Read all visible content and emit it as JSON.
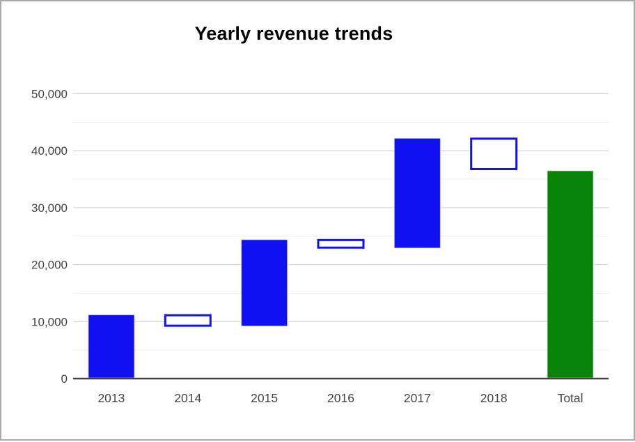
{
  "window": {
    "background": "#ffffff",
    "border_color": "#a9a9af"
  },
  "chart_data": {
    "type": "bar",
    "subtype": "waterfall",
    "title": "Yearly revenue trends",
    "xlabel": "",
    "ylabel": "",
    "legend": "none",
    "grid": true,
    "categories": [
      "2013",
      "2014",
      "2015",
      "2016",
      "2017",
      "2018",
      "Total"
    ],
    "bars": [
      {
        "label": "2013",
        "start": 0,
        "end": 11300,
        "change": 11300,
        "style": "filled-blue",
        "meaning": "increase"
      },
      {
        "label": "2014",
        "start": 11300,
        "end": 9100,
        "change": -2200,
        "style": "hollow-blue",
        "meaning": "decrease"
      },
      {
        "label": "2015",
        "start": 9100,
        "end": 24500,
        "change": 15400,
        "style": "filled-blue",
        "meaning": "increase"
      },
      {
        "label": "2016",
        "start": 24500,
        "end": 22800,
        "change": -1700,
        "style": "hollow-blue",
        "meaning": "decrease"
      },
      {
        "label": "2017",
        "start": 22800,
        "end": 42300,
        "change": 19500,
        "style": "filled-blue",
        "meaning": "increase"
      },
      {
        "label": "2018",
        "start": 42300,
        "end": 36600,
        "change": -5700,
        "style": "hollow-blue",
        "meaning": "decrease"
      },
      {
        "label": "Total",
        "start": 0,
        "end": 36600,
        "change": 36600,
        "style": "filled-green",
        "meaning": "total"
      }
    ],
    "y_axis": {
      "min": 0,
      "max": 50000,
      "major_step": 10000,
      "minor_step": 5000,
      "tick_labels": [
        "0",
        "10,000",
        "20,000",
        "30,000",
        "40,000",
        "50,000"
      ]
    },
    "colors": {
      "rise_fill": "#1010f0",
      "fall_border": "#1010f0",
      "fall_fill": "#ffffff",
      "total_fill": "#088408",
      "major_grid": "#cccccc",
      "minor_grid": "#ededed",
      "baseline": "#424242",
      "axis_text": "#454545",
      "title_text": "#000000"
    }
  }
}
